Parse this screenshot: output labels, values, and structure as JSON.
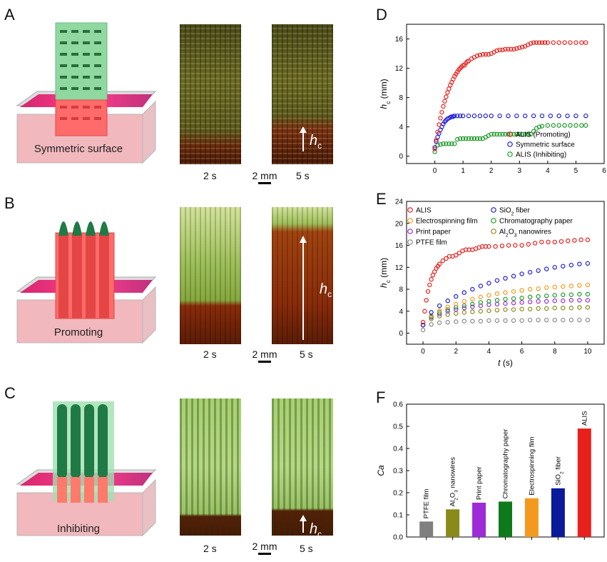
{
  "panels": {
    "A": {
      "letter": "A",
      "label": "Symmetric surface",
      "time1": "2 s",
      "time2": "5 s",
      "scale": "2 mm",
      "hc": "h",
      "hc_sub": "c"
    },
    "B": {
      "letter": "B",
      "label": "Promoting",
      "time1": "2 s",
      "time2": "5 s",
      "scale": "2 mm",
      "hc": "h",
      "hc_sub": "c"
    },
    "C": {
      "letter": "C",
      "label": "Inhibiting",
      "time1": "2 s",
      "time2": "5 s",
      "scale": "2 mm",
      "hc": "h",
      "hc_sub": "c"
    },
    "D": {
      "letter": "D"
    },
    "E": {
      "letter": "E"
    },
    "F": {
      "letter": "F"
    }
  },
  "colors": {
    "red": "#e8201c",
    "blue": "#1f1fd6",
    "green": "#1e9a2a",
    "orange": "#f39a1e",
    "purple": "#9d2bd8",
    "olive": "#8a8a1a",
    "gray": "#8a8a8a",
    "navy": "#0a1a9a",
    "dark_green": "#0f7a1c"
  },
  "chart_data": [
    {
      "id": "D",
      "type": "scatter",
      "ylabel": "h",
      "ylabel_sub": "c",
      "ylabel_unit": "(mm)",
      "xlim": [
        -1,
        6
      ],
      "ylim": [
        -1,
        18
      ],
      "xticks": [
        "0",
        "1",
        "2",
        "3",
        "4",
        "5",
        "6"
      ],
      "yticks": [
        "0",
        "4",
        "8",
        "12",
        "16"
      ],
      "xtick_values": [
        0,
        1,
        2,
        3,
        4,
        5,
        6
      ],
      "ytick_values": [
        0,
        4,
        8,
        12,
        16
      ],
      "legend_position": "bottom-right",
      "series": [
        {
          "name": "ALIS (Promoting)",
          "color": "#e8201c",
          "x": [
            0.0,
            0.05,
            0.1,
            0.15,
            0.2,
            0.25,
            0.3,
            0.35,
            0.4,
            0.45,
            0.5,
            0.55,
            0.6,
            0.65,
            0.7,
            0.75,
            0.8,
            0.85,
            0.9,
            0.95,
            1.0,
            1.05,
            1.1,
            1.15,
            1.2,
            1.3,
            1.4,
            1.5,
            1.6,
            1.7,
            1.8,
            1.9,
            2.0,
            2.1,
            2.2,
            2.3,
            2.4,
            2.5,
            2.6,
            2.7,
            2.8,
            2.9,
            3.0,
            3.1,
            3.2,
            3.3,
            3.4,
            3.5,
            3.6,
            3.7,
            3.8,
            3.9,
            4.0,
            4.2,
            4.4,
            4.6,
            4.8,
            5.0,
            5.2,
            5.35
          ],
          "y": [
            1.0,
            2.2,
            3.3,
            4.3,
            5.2,
            6.0,
            6.8,
            7.5,
            8.1,
            8.7,
            9.2,
            9.7,
            10.1,
            10.5,
            10.9,
            11.2,
            11.5,
            11.8,
            12.0,
            12.2,
            12.4,
            12.4,
            12.7,
            12.9,
            13.0,
            13.3,
            13.5,
            13.7,
            13.8,
            13.9,
            13.9,
            13.9,
            14.0,
            14.2,
            14.4,
            14.5,
            14.5,
            14.6,
            14.6,
            14.6,
            14.6,
            14.7,
            14.8,
            14.9,
            15.0,
            15.2,
            15.4,
            15.5,
            15.5,
            15.5,
            15.5,
            15.5,
            15.5,
            15.5,
            15.5,
            15.5,
            15.5,
            15.5,
            15.5,
            15.5
          ]
        },
        {
          "name": "Symmetric surface",
          "color": "#1f1fd6",
          "x": [
            0.0,
            0.05,
            0.1,
            0.15,
            0.2,
            0.25,
            0.3,
            0.35,
            0.4,
            0.45,
            0.5,
            0.55,
            0.6,
            0.65,
            0.7,
            0.8,
            0.9,
            1.0,
            1.2,
            1.4,
            1.6,
            1.8,
            2.0,
            2.3,
            2.6,
            2.9,
            3.2,
            3.5,
            3.8,
            4.1,
            4.4,
            4.7,
            5.0,
            5.35
          ],
          "y": [
            1.2,
            2.0,
            2.6,
            3.1,
            3.6,
            4.0,
            4.4,
            4.7,
            4.9,
            5.1,
            5.2,
            5.3,
            5.4,
            5.4,
            5.5,
            5.5,
            5.5,
            5.5,
            5.5,
            5.5,
            5.5,
            5.5,
            5.5,
            5.5,
            5.5,
            5.5,
            5.5,
            5.5,
            5.5,
            5.5,
            5.5,
            5.5,
            5.5,
            5.5
          ]
        },
        {
          "name": "ALIS (Inhibiting)",
          "color": "#1e9a2a",
          "x": [
            0.0,
            0.1,
            0.2,
            0.3,
            0.4,
            0.5,
            0.6,
            0.7,
            0.8,
            0.9,
            1.0,
            1.1,
            1.2,
            1.3,
            1.4,
            1.5,
            1.6,
            1.7,
            1.8,
            1.9,
            2.0,
            2.1,
            2.2,
            2.3,
            2.4,
            2.5,
            2.6,
            2.7,
            2.8,
            2.9,
            3.0,
            3.1,
            3.2,
            3.3,
            3.4,
            3.5,
            3.6,
            3.7,
            3.8,
            4.0,
            4.2,
            4.4,
            4.6,
            4.8,
            5.0,
            5.2,
            5.35
          ],
          "y": [
            0.6,
            1.5,
            1.6,
            1.7,
            1.7,
            1.7,
            1.7,
            1.7,
            2.3,
            2.4,
            2.4,
            2.4,
            2.4,
            2.4,
            2.4,
            2.4,
            2.4,
            2.4,
            2.6,
            2.8,
            3.0,
            3.0,
            3.0,
            3.0,
            3.0,
            3.0,
            3.0,
            3.0,
            3.0,
            3.0,
            3.0,
            3.0,
            3.0,
            3.0,
            3.0,
            3.4,
            3.8,
            4.0,
            4.1,
            4.2,
            4.2,
            4.2,
            4.2,
            4.2,
            4.2,
            4.2,
            4.2
          ]
        }
      ]
    },
    {
      "id": "E",
      "type": "scatter",
      "ylabel": "h",
      "ylabel_sub": "c",
      "ylabel_unit": "(mm)",
      "xlabel": "t",
      "xlabel_unit": "(s)",
      "xlim": [
        -1,
        11
      ],
      "ylim": [
        -2,
        24
      ],
      "xticks": [
        "0",
        "2",
        "4",
        "6",
        "8",
        "10"
      ],
      "yticks": [
        "0",
        "4",
        "8",
        "12",
        "16",
        "20",
        "24"
      ],
      "xtick_values": [
        0,
        2,
        4,
        6,
        8,
        10
      ],
      "ytick_values": [
        0,
        4,
        8,
        12,
        16,
        20,
        24
      ],
      "legend_position": "top",
      "series": [
        {
          "name": "ALIS",
          "sub": "",
          "color": "#e8201c",
          "x": [
            0.0,
            0.1,
            0.2,
            0.3,
            0.4,
            0.5,
            0.6,
            0.7,
            0.8,
            0.9,
            1.0,
            1.2,
            1.4,
            1.6,
            1.8,
            2.0,
            2.2,
            2.4,
            2.6,
            2.8,
            3.0,
            3.2,
            3.4,
            3.6,
            3.8,
            4.0,
            4.4,
            4.8,
            5.2,
            5.6,
            6.0,
            6.4,
            6.8,
            7.2,
            7.6,
            8.0,
            8.4,
            8.8,
            9.2,
            9.6,
            10.0
          ],
          "y": [
            2.0,
            4.0,
            6.0,
            7.6,
            8.8,
            9.8,
            10.6,
            11.2,
            11.8,
            12.2,
            12.6,
            13.2,
            13.6,
            14.0,
            14.0,
            14.2,
            14.6,
            15.0,
            15.2,
            15.2,
            15.2,
            15.4,
            15.6,
            15.8,
            15.8,
            15.8,
            15.8,
            15.9,
            16.0,
            16.0,
            16.0,
            16.2,
            16.4,
            16.6,
            16.6,
            16.6,
            16.7,
            16.8,
            16.9,
            17.0,
            17.0
          ]
        },
        {
          "name": "SiO",
          "sub": "2",
          "tail": " fiber",
          "color": "#1f1fd6",
          "x": [
            0,
            0.5,
            1,
            1.5,
            2,
            2.5,
            3,
            3.5,
            4,
            4.5,
            5,
            5.5,
            6,
            6.5,
            7,
            7.5,
            8,
            8.5,
            9,
            9.5,
            10
          ],
          "y": [
            1.5,
            3.8,
            5.0,
            5.9,
            6.7,
            7.4,
            8.0,
            8.6,
            9.1,
            9.6,
            10.0,
            10.4,
            10.8,
            11.1,
            11.4,
            11.7,
            12.0,
            12.2,
            12.4,
            12.6,
            12.7
          ]
        },
        {
          "name": "Electrospinning film",
          "sub": "",
          "color": "#f39a1e",
          "x": [
            0,
            0.5,
            1,
            1.5,
            2,
            2.5,
            3,
            3.5,
            4,
            4.5,
            5,
            5.5,
            6,
            6.5,
            7,
            7.5,
            8,
            8.5,
            9,
            9.5,
            10
          ],
          "y": [
            1.5,
            3.2,
            4.1,
            4.8,
            5.3,
            5.8,
            6.2,
            6.6,
            6.9,
            7.2,
            7.4,
            7.6,
            7.8,
            8.0,
            8.1,
            8.3,
            8.4,
            8.5,
            8.6,
            8.7,
            8.8
          ]
        },
        {
          "name": "Chromatography paper",
          "sub": "",
          "color": "#1e9a2a",
          "x": [
            0,
            0.5,
            1,
            1.5,
            2,
            2.5,
            3,
            3.5,
            4,
            4.5,
            5,
            5.5,
            6,
            6.5,
            7,
            7.5,
            8,
            8.5,
            9,
            9.5,
            10
          ],
          "y": [
            1.5,
            3.0,
            3.8,
            4.3,
            4.7,
            5.0,
            5.3,
            5.6,
            5.8,
            6.0,
            6.2,
            6.3,
            6.4,
            6.6,
            6.7,
            6.8,
            6.9,
            7.0,
            7.0,
            7.1,
            7.1
          ]
        },
        {
          "name": "Print paper",
          "sub": "",
          "color": "#9d2bd8",
          "x": [
            0,
            0.5,
            1,
            1.5,
            2,
            2.5,
            3,
            3.5,
            4,
            4.5,
            5,
            5.5,
            6,
            6.5,
            7,
            7.5,
            8,
            8.5,
            9,
            9.5,
            10
          ],
          "y": [
            1.5,
            2.9,
            3.5,
            4.0,
            4.3,
            4.6,
            4.8,
            5.0,
            5.2,
            5.3,
            5.4,
            5.5,
            5.6,
            5.7,
            5.8,
            5.8,
            5.9,
            5.9,
            6.0,
            6.0,
            6.0
          ]
        },
        {
          "name": "Al",
          "sub": "2",
          "mid": "O",
          "sub2": "3",
          "tail": " nanowires",
          "color": "#8a8a1a",
          "x": [
            0,
            0.5,
            1,
            1.5,
            2,
            2.5,
            3,
            3.5,
            4,
            4.5,
            5,
            5.5,
            6,
            6.5,
            7,
            7.5,
            8,
            8.5,
            9,
            9.5,
            10
          ],
          "y": [
            1.5,
            2.6,
            3.1,
            3.4,
            3.6,
            3.8,
            3.9,
            4.0,
            4.1,
            4.2,
            4.3,
            4.3,
            4.4,
            4.4,
            4.5,
            4.5,
            4.6,
            4.6,
            4.6,
            4.7,
            4.7
          ]
        },
        {
          "name": "PTFE film",
          "sub": "",
          "color": "#8a8a8a",
          "x": [
            0,
            0.5,
            1,
            1.5,
            2,
            2.5,
            3,
            3.5,
            4,
            4.5,
            5,
            5.5,
            6,
            6.5,
            7,
            7.5,
            8,
            8.5,
            9,
            9.5,
            10
          ],
          "y": [
            0.6,
            1.6,
            1.9,
            2.0,
            2.1,
            2.2,
            2.2,
            2.2,
            2.3,
            2.3,
            2.3,
            2.3,
            2.3,
            2.4,
            2.4,
            2.4,
            2.4,
            2.4,
            2.4,
            2.4,
            2.4
          ]
        }
      ]
    },
    {
      "id": "F",
      "type": "bar",
      "ylabel": "Ca",
      "ylim": [
        0,
        0.6
      ],
      "yticks": [
        "0.0",
        "0.1",
        "0.2",
        "0.3",
        "0.4",
        "0.5",
        "0.6"
      ],
      "ytick_values": [
        0,
        0.1,
        0.2,
        0.3,
        0.4,
        0.5,
        0.6
      ],
      "categories": [
        "PTFE film",
        "Al2O3 nanowires",
        "Print paper",
        "Chromatography paper",
        "Electrospinning film",
        "SiO2 fiber",
        "ALIS"
      ],
      "values": [
        0.07,
        0.125,
        0.155,
        0.16,
        0.175,
        0.22,
        0.49
      ],
      "bar_colors": [
        "#7f7f7f",
        "#8a8a1a",
        "#9d2bd8",
        "#0f7a1c",
        "#f39a1e",
        "#0a1a9a",
        "#e8201c"
      ]
    }
  ]
}
